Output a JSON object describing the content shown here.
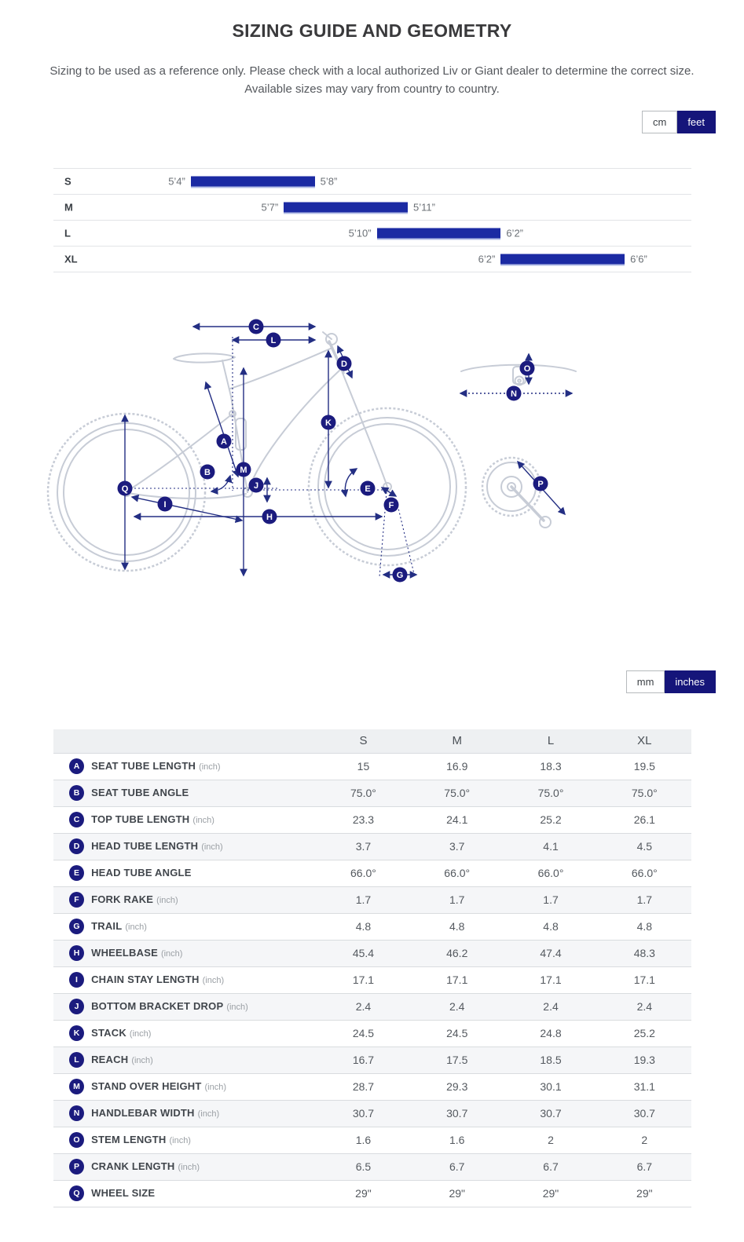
{
  "page": {
    "title": "SIZING GUIDE AND GEOMETRY",
    "subtitle_line1": "Sizing to be used as a reference only. Please check with a local authorized Liv or Giant dealer to determine the correct size.",
    "subtitle_line2": "Available sizes may vary from country to country."
  },
  "colors": {
    "accent_navy": "#15157a",
    "bar_blue": "#1b2aa3",
    "badge_navy": "#1b1b7e",
    "diagram_gray": "#c7ccd6",
    "arrow_navy": "#232e83"
  },
  "height_toggle": {
    "options": [
      "cm",
      "feet"
    ],
    "active": "feet"
  },
  "unit_toggle": {
    "options": [
      "mm",
      "inches"
    ],
    "active": "inches"
  },
  "size_chart": {
    "min_in": 62,
    "max_in": 80,
    "rows": [
      {
        "size": "S",
        "from_label": "5’4”",
        "to_label": "5’8”",
        "from_in": 64,
        "to_in": 68
      },
      {
        "size": "M",
        "from_label": "5’7”",
        "to_label": "5’11”",
        "from_in": 67,
        "to_in": 71
      },
      {
        "size": "L",
        "from_label": "5’10”",
        "to_label": "6’2”",
        "from_in": 70,
        "to_in": 74
      },
      {
        "size": "XL",
        "from_label": "6’2”",
        "to_label": "6’6”",
        "from_in": 74,
        "to_in": 78
      }
    ]
  },
  "chart_data": {
    "type": "bar",
    "orientation": "horizontal-range",
    "categories": [
      "S",
      "M",
      "L",
      "XL"
    ],
    "series": [
      {
        "name": "rider-height-range-feet",
        "values": [
          [
            "5’4”",
            "5’8”"
          ],
          [
            "5’7”",
            "5’11”"
          ],
          [
            "5’10”",
            "6’2”"
          ],
          [
            "6’2”",
            "6’6”"
          ]
        ]
      },
      {
        "name": "rider-height-range-inches",
        "values": [
          [
            64,
            68
          ],
          [
            67,
            71
          ],
          [
            70,
            74
          ],
          [
            74,
            78
          ]
        ]
      }
    ],
    "xlim_inches": [
      62,
      80
    ],
    "grid": false,
    "legend": false
  },
  "geometry_table": {
    "columns": [
      "S",
      "M",
      "L",
      "XL"
    ],
    "rows": [
      {
        "letter": "A",
        "label": "SEAT TUBE LENGTH",
        "unit": "(inch)",
        "values": [
          "15",
          "16.9",
          "18.3",
          "19.5"
        ]
      },
      {
        "letter": "B",
        "label": "SEAT TUBE ANGLE",
        "unit": "",
        "values": [
          "75.0°",
          "75.0°",
          "75.0°",
          "75.0°"
        ]
      },
      {
        "letter": "C",
        "label": "TOP TUBE LENGTH",
        "unit": "(inch)",
        "values": [
          "23.3",
          "24.1",
          "25.2",
          "26.1"
        ]
      },
      {
        "letter": "D",
        "label": "HEAD TUBE LENGTH",
        "unit": "(inch)",
        "values": [
          "3.7",
          "3.7",
          "4.1",
          "4.5"
        ]
      },
      {
        "letter": "E",
        "label": "HEAD TUBE ANGLE",
        "unit": "",
        "values": [
          "66.0°",
          "66.0°",
          "66.0°",
          "66.0°"
        ]
      },
      {
        "letter": "F",
        "label": "FORK RAKE",
        "unit": "(inch)",
        "values": [
          "1.7",
          "1.7",
          "1.7",
          "1.7"
        ]
      },
      {
        "letter": "G",
        "label": "TRAIL",
        "unit": "(inch)",
        "values": [
          "4.8",
          "4.8",
          "4.8",
          "4.8"
        ]
      },
      {
        "letter": "H",
        "label": "WHEELBASE",
        "unit": "(inch)",
        "values": [
          "45.4",
          "46.2",
          "47.4",
          "48.3"
        ]
      },
      {
        "letter": "I",
        "label": "CHAIN STAY LENGTH",
        "unit": "(inch)",
        "values": [
          "17.1",
          "17.1",
          "17.1",
          "17.1"
        ]
      },
      {
        "letter": "J",
        "label": "BOTTOM BRACKET DROP",
        "unit": "(inch)",
        "values": [
          "2.4",
          "2.4",
          "2.4",
          "2.4"
        ]
      },
      {
        "letter": "K",
        "label": "STACK",
        "unit": "(inch)",
        "values": [
          "24.5",
          "24.5",
          "24.8",
          "25.2"
        ]
      },
      {
        "letter": "L",
        "label": "REACH",
        "unit": "(inch)",
        "values": [
          "16.7",
          "17.5",
          "18.5",
          "19.3"
        ]
      },
      {
        "letter": "M",
        "label": "STAND OVER HEIGHT",
        "unit": "(inch)",
        "values": [
          "28.7",
          "29.3",
          "30.1",
          "31.1"
        ]
      },
      {
        "letter": "N",
        "label": "HANDLEBAR WIDTH",
        "unit": "(inch)",
        "values": [
          "30.7",
          "30.7",
          "30.7",
          "30.7"
        ]
      },
      {
        "letter": "O",
        "label": "STEM LENGTH",
        "unit": "(inch)",
        "values": [
          "1.6",
          "1.6",
          "2",
          "2"
        ]
      },
      {
        "letter": "P",
        "label": "CRANK LENGTH",
        "unit": "(inch)",
        "values": [
          "6.5",
          "6.7",
          "6.7",
          "6.7"
        ]
      },
      {
        "letter": "Q",
        "label": "WHEEL SIZE",
        "unit": "",
        "values": [
          "29\"",
          "29\"",
          "29\"",
          "29\""
        ]
      }
    ]
  }
}
